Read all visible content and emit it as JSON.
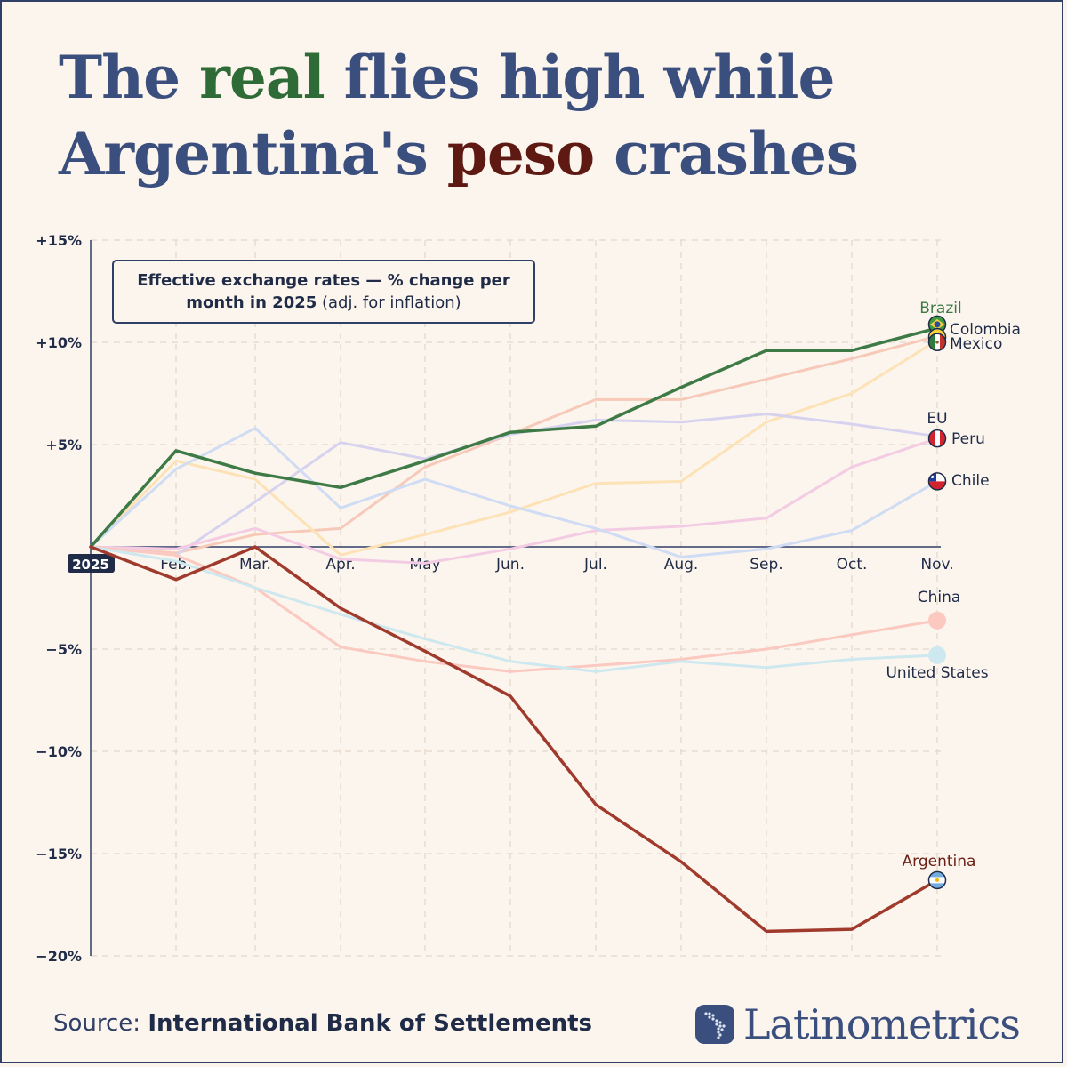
{
  "title": {
    "part1": "The ",
    "highlight1": "real",
    "part2": " flies high while",
    "part3": "Argentina's ",
    "highlight2": "peso",
    "part4": " crashes"
  },
  "colors": {
    "title": "#3b4f7e",
    "brazil": "#3e7a45",
    "argentina": "#a03a2c",
    "background": "#fcf5ee"
  },
  "chart_data": {
    "type": "line",
    "title": "Effective exchange rates — % change per month in 2025",
    "subtitle": "(adj. for inflation)",
    "title_bold": "Effective exchange rates — % change per month in 2025",
    "x": [
      "2025",
      "Feb.",
      "Mar.",
      "Apr.",
      "May",
      "Jun.",
      "Jul.",
      "Aug.",
      "Sep.",
      "Oct.",
      "Nov."
    ],
    "y_ticks": [
      "+15%",
      "+10%",
      "+5%",
      "",
      "−5%",
      "−10%",
      "−15%",
      "−20%"
    ],
    "ylim": [
      -20,
      15
    ],
    "grid": true,
    "series": [
      {
        "name": "Brazil",
        "color": "#3e7a45",
        "width": 3.5,
        "values": [
          0,
          4.7,
          3.6,
          2.9,
          4.2,
          5.6,
          5.9,
          7.8,
          9.6,
          9.6,
          10.7
        ]
      },
      {
        "name": "Colombia",
        "color": "#f6c9b8",
        "width": 3,
        "values": [
          0,
          -0.3,
          0.6,
          0.9,
          3.9,
          5.5,
          7.2,
          7.2,
          8.2,
          9.2,
          10.3
        ]
      },
      {
        "name": "Mexico",
        "color": "#fde2b6",
        "width": 3,
        "values": [
          0,
          4.2,
          3.3,
          -0.4,
          0.6,
          1.7,
          3.1,
          3.2,
          6.1,
          7.5,
          10.1
        ]
      },
      {
        "name": "EU",
        "color": "#d7d3ef",
        "width": 3,
        "values": [
          0,
          -0.4,
          2.2,
          5.1,
          4.3,
          5.5,
          6.2,
          6.1,
          6.5,
          6.0,
          5.4
        ]
      },
      {
        "name": "Peru",
        "color": "#f3cce4",
        "width": 3,
        "values": [
          0,
          -0.1,
          0.9,
          -0.6,
          -0.8,
          -0.1,
          0.8,
          1.0,
          1.4,
          3.9,
          5.3
        ]
      },
      {
        "name": "Chile",
        "color": "#cfdcf4",
        "width": 3,
        "values": [
          0,
          3.8,
          5.8,
          1.9,
          3.3,
          2.0,
          0.9,
          -0.5,
          -0.1,
          0.8,
          3.2
        ]
      },
      {
        "name": "China",
        "color": "#fbc9bf",
        "width": 3,
        "values": [
          0,
          -0.4,
          -2.0,
          -4.9,
          -5.6,
          -6.1,
          -5.8,
          -5.5,
          -5.0,
          -4.3,
          -3.6
        ]
      },
      {
        "name": "United States",
        "color": "#cde8ee",
        "width": 3,
        "values": [
          0,
          -0.7,
          -2.0,
          -3.3,
          -4.5,
          -5.6,
          -6.1,
          -5.6,
          -5.9,
          -5.5,
          -5.3
        ]
      },
      {
        "name": "Argentina",
        "color": "#a03a2c",
        "width": 3.5,
        "values": [
          0,
          -1.6,
          0,
          -3.0,
          -5.1,
          -7.3,
          -12.6,
          -15.4,
          -18.8,
          -18.7,
          -16.3
        ]
      }
    ]
  },
  "labels": {
    "brazil": "Brazil",
    "colombia": "Colombia",
    "mexico": "Mexico",
    "eu": "EU",
    "peru": "Peru",
    "chile": "Chile",
    "china": "China",
    "united_states": "United States",
    "argentina": "Argentina"
  },
  "legend": {
    "bold": "Effective exchange rates — % change per",
    "bold2": "month in 2025",
    "normal": " (adj. for inflation)"
  },
  "footer": {
    "source_label": "Source: ",
    "source_name": "International Bank of Settlements",
    "brand": "Latinometrics"
  }
}
